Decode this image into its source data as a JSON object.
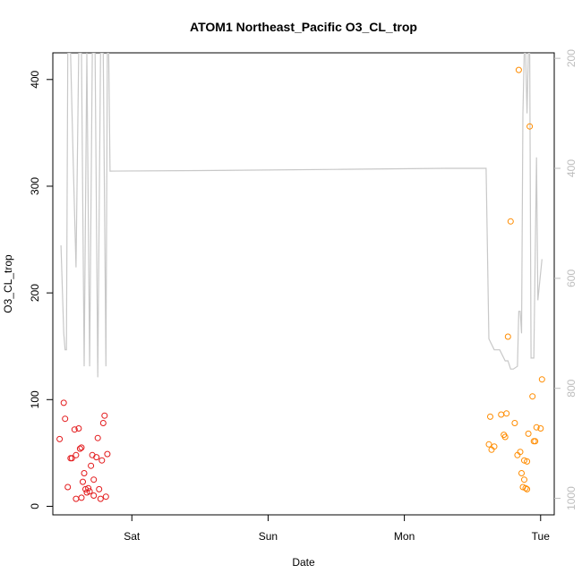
{
  "chart_data": {
    "type": "scatter",
    "title": "ATOM1 Northeast_Pacific O3_CL_trop",
    "xlabel": "Date",
    "ylabel": "O3_CL_trop",
    "x_units": "days (Fri 00:00 = 0)",
    "x_ticks": [
      {
        "value": 1,
        "label": "Sat"
      },
      {
        "value": 2,
        "label": "Sun"
      },
      {
        "value": 3,
        "label": "Mon"
      },
      {
        "value": 4,
        "label": "Tue"
      }
    ],
    "xlim": [
      0.42,
      4.1
    ],
    "y_ticks": [
      0,
      100,
      200,
      300,
      400
    ],
    "ylim": [
      -8,
      425
    ],
    "y2_ticks": [
      200,
      400,
      600,
      800,
      1000
    ],
    "y2lim_top_to_bottom": [
      190,
      1030
    ],
    "y2_reversed": true,
    "colors": {
      "series1": "#e31a1c",
      "series2": "#ff8c00",
      "pressure_line": "#c8c8c8",
      "axes": "#000000",
      "right_axis": "#bdbdbd"
    },
    "series": [
      {
        "color": "#e31a1c",
        "marker": "open-circle",
        "points": [
          [
            0.47,
            63
          ],
          [
            0.5,
            97
          ],
          [
            0.51,
            82
          ],
          [
            0.53,
            18
          ],
          [
            0.55,
            45
          ],
          [
            0.56,
            45
          ],
          [
            0.58,
            72
          ],
          [
            0.59,
            48
          ],
          [
            0.59,
            7
          ],
          [
            0.61,
            73
          ],
          [
            0.62,
            54
          ],
          [
            0.63,
            55
          ],
          [
            0.63,
            8
          ],
          [
            0.64,
            23
          ],
          [
            0.65,
            31
          ],
          [
            0.66,
            16
          ],
          [
            0.67,
            13
          ],
          [
            0.68,
            17
          ],
          [
            0.69,
            14
          ],
          [
            0.7,
            38
          ],
          [
            0.71,
            48
          ],
          [
            0.72,
            25
          ],
          [
            0.72,
            10
          ],
          [
            0.74,
            46
          ],
          [
            0.75,
            64
          ],
          [
            0.76,
            16
          ],
          [
            0.77,
            7
          ],
          [
            0.78,
            43
          ],
          [
            0.79,
            78
          ],
          [
            0.8,
            85
          ],
          [
            0.81,
            9
          ],
          [
            0.82,
            49
          ]
        ]
      },
      {
        "color": "#ff8c00",
        "marker": "open-circle",
        "points": [
          [
            3.62,
            58
          ],
          [
            3.63,
            84
          ],
          [
            3.64,
            53
          ],
          [
            3.66,
            56
          ],
          [
            3.71,
            86
          ],
          [
            3.73,
            67
          ],
          [
            3.74,
            65
          ],
          [
            3.75,
            87
          ],
          [
            3.76,
            159
          ],
          [
            3.78,
            267
          ],
          [
            3.81,
            78
          ],
          [
            3.83,
            48
          ],
          [
            3.84,
            409
          ],
          [
            3.85,
            51
          ],
          [
            3.86,
            31
          ],
          [
            3.87,
            18
          ],
          [
            3.88,
            43
          ],
          [
            3.88,
            25
          ],
          [
            3.89,
            17
          ],
          [
            3.9,
            16
          ],
          [
            3.9,
            42
          ],
          [
            3.91,
            68
          ],
          [
            3.92,
            356
          ],
          [
            3.94,
            103
          ],
          [
            3.95,
            61
          ],
          [
            3.96,
            61
          ],
          [
            3.97,
            74
          ],
          [
            4.0,
            73
          ],
          [
            4.01,
            119
          ]
        ]
      }
    ],
    "pressure_line": {
      "color": "#c8c8c8",
      "axis": "right",
      "points": [
        [
          0.48,
          540
        ],
        [
          0.5,
          700
        ],
        [
          0.51,
          730
        ],
        [
          0.52,
          730
        ],
        [
          0.53,
          190
        ],
        [
          0.55,
          190
        ],
        [
          0.57,
          390
        ],
        [
          0.59,
          580
        ],
        [
          0.61,
          190
        ],
        [
          0.63,
          190
        ],
        [
          0.65,
          760
        ],
        [
          0.67,
          190
        ],
        [
          0.69,
          760
        ],
        [
          0.71,
          190
        ],
        [
          0.73,
          190
        ],
        [
          0.75,
          780
        ],
        [
          0.77,
          190
        ],
        [
          0.79,
          190
        ],
        [
          0.81,
          760
        ],
        [
          0.82,
          190
        ],
        [
          0.83,
          190
        ],
        [
          0.84,
          405
        ],
        [
          1.5,
          404
        ],
        [
          2.5,
          402
        ],
        [
          3.3,
          400
        ],
        [
          3.6,
          400
        ],
        [
          3.62,
          710
        ],
        [
          3.66,
          730
        ],
        [
          3.7,
          730
        ],
        [
          3.74,
          750
        ],
        [
          3.76,
          750
        ],
        [
          3.78,
          765
        ],
        [
          3.8,
          765
        ],
        [
          3.83,
          760
        ],
        [
          3.84,
          660
        ],
        [
          3.85,
          660
        ],
        [
          3.86,
          700
        ],
        [
          3.87,
          300
        ],
        [
          3.88,
          190
        ],
        [
          3.89,
          190
        ],
        [
          3.9,
          300
        ],
        [
          3.91,
          190
        ],
        [
          3.92,
          190
        ],
        [
          3.93,
          745
        ],
        [
          3.95,
          745
        ],
        [
          3.97,
          380
        ],
        [
          3.98,
          640
        ],
        [
          4.01,
          565
        ]
      ]
    }
  }
}
